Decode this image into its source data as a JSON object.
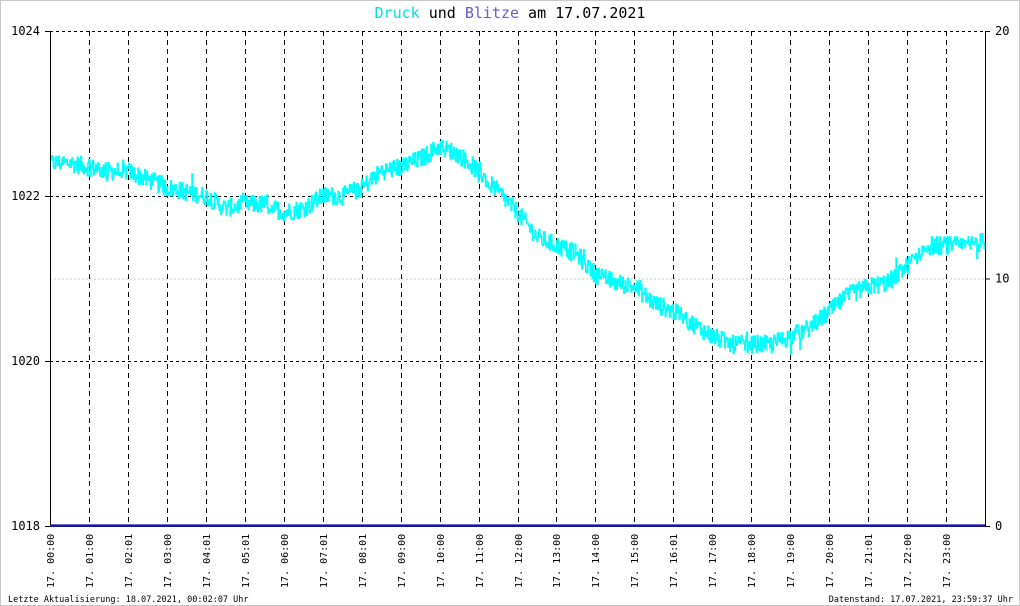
{
  "chart_data": {
    "type": "line",
    "title": {
      "part1": "Druck",
      "part2": " und ",
      "part3": "Blitze",
      "part4": " am 17.07.2021"
    },
    "y_left": {
      "min": 1018,
      "max": 1024,
      "ticks": [
        1018,
        1020,
        1022,
        1024
      ]
    },
    "y_right": {
      "min": 0,
      "max": 20,
      "ticks": [
        0,
        10,
        20
      ]
    },
    "x_ticks": [
      "17. 00:00",
      "17. 01:00",
      "17. 02:01",
      "17. 03:00",
      "17. 04:01",
      "17. 05:01",
      "17. 06:00",
      "17. 07:01",
      "17. 08:01",
      "17. 09:00",
      "17. 10:00",
      "17. 11:00",
      "17. 12:00",
      "17. 13:00",
      "17. 14:00",
      "17. 15:00",
      "17. 16:01",
      "17. 17:00",
      "17. 18:00",
      "17. 19:00",
      "17. 20:00",
      "17. 21:01",
      "17. 22:00",
      "17. 23:00"
    ],
    "grid": true,
    "series": [
      {
        "name": "Druck",
        "axis": "left",
        "color": "#00ffff",
        "x_hours": [
          0,
          0.5,
          1,
          1.5,
          2,
          2.5,
          3,
          3.5,
          4,
          4.5,
          5,
          5.5,
          6,
          6.5,
          7,
          7.5,
          8,
          8.5,
          9,
          9.5,
          10,
          10.5,
          11,
          11.5,
          12,
          12.5,
          13,
          13.5,
          14,
          14.5,
          15,
          15.5,
          16,
          16.5,
          17,
          17.5,
          18,
          18.5,
          19,
          19.5,
          20,
          20.5,
          21,
          21.5,
          22,
          22.5,
          23,
          23.5,
          23.98
        ],
        "values": [
          1022.4,
          1022.4,
          1022.35,
          1022.3,
          1022.3,
          1022.2,
          1022.1,
          1022.05,
          1022.0,
          1021.85,
          1021.9,
          1021.9,
          1021.8,
          1021.85,
          1022.0,
          1022.0,
          1022.1,
          1022.3,
          1022.35,
          1022.45,
          1022.6,
          1022.5,
          1022.3,
          1022.05,
          1021.8,
          1021.5,
          1021.4,
          1021.3,
          1021.05,
          1020.95,
          1020.9,
          1020.7,
          1020.6,
          1020.45,
          1020.3,
          1020.2,
          1020.2,
          1020.2,
          1020.3,
          1020.4,
          1020.6,
          1020.8,
          1020.9,
          1020.95,
          1021.15,
          1021.4,
          1021.4,
          1021.4,
          1021.45
        ]
      },
      {
        "name": "Blitze",
        "axis": "right",
        "color": "#3c3cc8",
        "x_hours": [
          0,
          24
        ],
        "values": [
          0,
          0
        ]
      }
    ]
  },
  "title_colors": {
    "druck": "#00e0e0",
    "blitze": "#6a5acd",
    "text": "#000000"
  },
  "footer": {
    "left": "Letzte Aktualisierung: 18.07.2021, 00:02:07 Uhr",
    "right": "Datenstand: 17.07.2021, 23:59:37 Uhr"
  }
}
